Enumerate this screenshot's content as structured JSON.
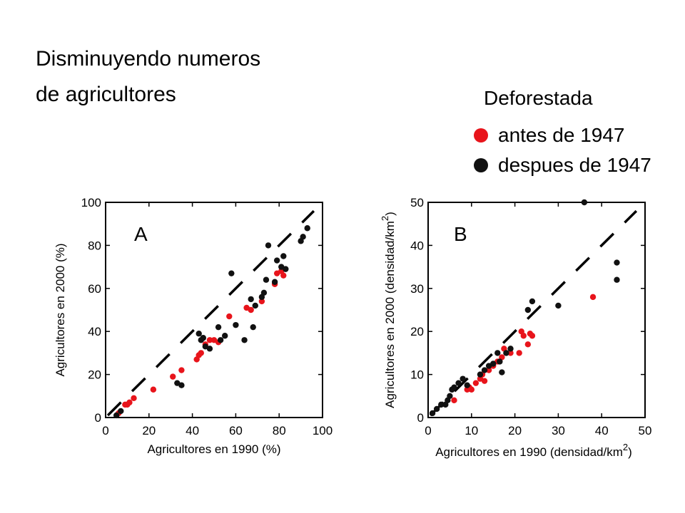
{
  "title_lines": [
    "Disminuyendo numeros",
    "de agricultores"
  ],
  "legend": {
    "title": "Deforestada",
    "items": [
      {
        "label": "antes de 1947",
        "color": "#e8141b"
      },
      {
        "label": "despues de 1947",
        "color": "#111111"
      }
    ]
  },
  "chart_data": [
    {
      "type": "scatter",
      "panel_label": "A",
      "xlabel": "Agricultores en 1990 (%)",
      "ylabel": "Agricultores en 2000 (%)",
      "xlim": [
        0,
        100
      ],
      "ylim": [
        0,
        100
      ],
      "xticks": [
        0,
        20,
        40,
        60,
        80,
        100
      ],
      "yticks": [
        0,
        20,
        40,
        60,
        80,
        100
      ],
      "reference_line": "dashed 1:1",
      "series": [
        {
          "color": "#e8141b",
          "points": [
            [
              6,
              2
            ],
            [
              9,
              6
            ],
            [
              10,
              6
            ],
            [
              11,
              7
            ],
            [
              13,
              9
            ],
            [
              22,
              13
            ],
            [
              31,
              19
            ],
            [
              35,
              22
            ],
            [
              42,
              27
            ],
            [
              43,
              29
            ],
            [
              44,
              30
            ],
            [
              46,
              34
            ],
            [
              48,
              36
            ],
            [
              50,
              36
            ],
            [
              52,
              35
            ],
            [
              57,
              47
            ],
            [
              65,
              51
            ],
            [
              67,
              50
            ],
            [
              72,
              54
            ],
            [
              78,
              62
            ],
            [
              79,
              67
            ],
            [
              81,
              68
            ],
            [
              82,
              66
            ]
          ]
        },
        {
          "color": "#111111",
          "points": [
            [
              5,
              1
            ],
            [
              7,
              3
            ],
            [
              33,
              16
            ],
            [
              35,
              15
            ],
            [
              43,
              39
            ],
            [
              44,
              36
            ],
            [
              45,
              37
            ],
            [
              46,
              33
            ],
            [
              48,
              32
            ],
            [
              52,
              42
            ],
            [
              53,
              36
            ],
            [
              55,
              38
            ],
            [
              58,
              67
            ],
            [
              60,
              43
            ],
            [
              64,
              36
            ],
            [
              67,
              55
            ],
            [
              68,
              42
            ],
            [
              69,
              52
            ],
            [
              72,
              56
            ],
            [
              73,
              58
            ],
            [
              74,
              64
            ],
            [
              75,
              80
            ],
            [
              78,
              63
            ],
            [
              79,
              73
            ],
            [
              81,
              70
            ],
            [
              82,
              75
            ],
            [
              83,
              69
            ],
            [
              90,
              82
            ],
            [
              91,
              84
            ],
            [
              93,
              88
            ]
          ]
        }
      ]
    },
    {
      "type": "scatter",
      "panel_label": "B",
      "xlabel": "Agricultores en 1990 (densidad/km",
      "xlabel_sup": "2",
      "xlabel_end": ")",
      "ylabel": "Agricultores en 2000 (densidad/km",
      "ylabel_sup": "2",
      "ylabel_end": ")",
      "xlim": [
        0,
        50
      ],
      "ylim": [
        0,
        50
      ],
      "xticks": [
        0,
        10,
        20,
        30,
        40,
        50
      ],
      "yticks": [
        0,
        10,
        20,
        30,
        40,
        50
      ],
      "reference_line": "dashed 1:1",
      "series": [
        {
          "color": "#e8141b",
          "points": [
            [
              6,
              4
            ],
            [
              9,
              6.5
            ],
            [
              9.5,
              7
            ],
            [
              10,
              6.5
            ],
            [
              11,
              8
            ],
            [
              12,
              9
            ],
            [
              12.5,
              10
            ],
            [
              13,
              8.5
            ],
            [
              14,
              11
            ],
            [
              15,
              12
            ],
            [
              16,
              13
            ],
            [
              17,
              14
            ],
            [
              17.5,
              16
            ],
            [
              18,
              15
            ],
            [
              19,
              15
            ],
            [
              21,
              15
            ],
            [
              21.5,
              20
            ],
            [
              22,
              19
            ],
            [
              23,
              17
            ],
            [
              23.5,
              19.5
            ],
            [
              24,
              19
            ],
            [
              38,
              28
            ]
          ]
        },
        {
          "color": "#111111",
          "points": [
            [
              1,
              1
            ],
            [
              2,
              2
            ],
            [
              3,
              3
            ],
            [
              4,
              3
            ],
            [
              4.5,
              4
            ],
            [
              5,
              5
            ],
            [
              5.5,
              6.5
            ],
            [
              6,
              7
            ],
            [
              7,
              8
            ],
            [
              8,
              9
            ],
            [
              9,
              7.5
            ],
            [
              12,
              10
            ],
            [
              13,
              11
            ],
            [
              14,
              12
            ],
            [
              15,
              12.5
            ],
            [
              16,
              15
            ],
            [
              16.5,
              13
            ],
            [
              17,
              10.5
            ],
            [
              18,
              15
            ],
            [
              19,
              16
            ],
            [
              23,
              25
            ],
            [
              24,
              27
            ],
            [
              30,
              26
            ],
            [
              36,
              50
            ],
            [
              43.5,
              32
            ],
            [
              43.5,
              36
            ]
          ]
        }
      ]
    }
  ]
}
